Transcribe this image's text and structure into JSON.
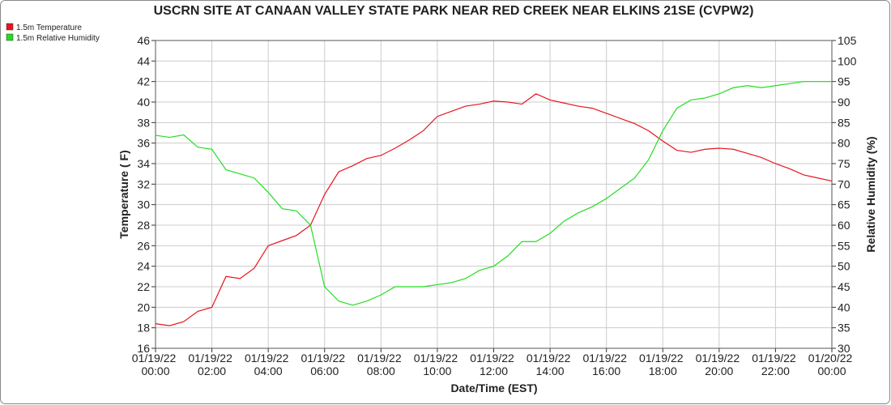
{
  "chart_data": {
    "type": "line",
    "title": "USCRN SITE AT CANAAN VALLEY STATE PARK NEAR RED CREEK NEAR ELKINS 21SE (CVPW2)",
    "x_label": "Date/Time (EST)",
    "y_label": "Temperature ( F)",
    "y2_label": "Relative Humidity (%)",
    "x": [
      0,
      0.5,
      1,
      1.5,
      2,
      2.5,
      3,
      3.5,
      4,
      4.5,
      5,
      5.5,
      6,
      6.5,
      7,
      7.5,
      8,
      8.5,
      9,
      9.5,
      10,
      10.5,
      11,
      11.5,
      12,
      12.5,
      13,
      13.5,
      14,
      14.5,
      15,
      15.5,
      16,
      16.5,
      17,
      17.5,
      18,
      18.5,
      19,
      19.5,
      20,
      20.5,
      21,
      21.5,
      22,
      22.5,
      23,
      23.5,
      24
    ],
    "series": [
      {
        "name": "1.5m Temperature",
        "color": "#e8141e",
        "axis": "y",
        "values": [
          18.4,
          18.2,
          18.6,
          19.6,
          20.0,
          23.0,
          22.8,
          23.8,
          26.0,
          26.5,
          27.0,
          28.0,
          31.0,
          33.2,
          33.8,
          34.5,
          34.8,
          35.5,
          36.3,
          37.2,
          38.6,
          39.1,
          39.6,
          39.8,
          40.1,
          40.0,
          39.8,
          40.8,
          40.2,
          39.9,
          39.6,
          39.4,
          38.9,
          38.4,
          37.9,
          37.2,
          36.2,
          35.3,
          35.1,
          35.4,
          35.5,
          35.4,
          35.0,
          34.6,
          34.0,
          33.5,
          32.9,
          32.6,
          32.3
        ]
      },
      {
        "name": "1.5m Relative Humidity",
        "color": "#22dd22",
        "axis": "y2",
        "values": [
          81.9,
          81.4,
          82,
          79,
          78.5,
          73.5,
          72.5,
          71.5,
          68,
          64,
          63.5,
          60,
          45,
          41.5,
          40.5,
          41.5,
          43,
          45,
          45,
          45,
          45.5,
          46,
          47,
          49,
          50,
          52.5,
          56,
          56,
          58,
          61,
          63,
          64.5,
          66.5,
          69,
          71.5,
          76,
          83,
          88.5,
          90.5,
          91,
          92,
          93.5,
          94,
          93.5,
          94,
          94.5,
          95,
          95,
          95
        ]
      }
    ],
    "xlim": [
      0,
      24
    ],
    "xticks": [
      {
        "value": 0,
        "label": "01/19/22 00:00"
      },
      {
        "value": 2,
        "label": "01/19/22 02:00"
      },
      {
        "value": 4,
        "label": "01/19/22 04:00"
      },
      {
        "value": 6,
        "label": "01/19/22 06:00"
      },
      {
        "value": 8,
        "label": "01/19/22 08:00"
      },
      {
        "value": 10,
        "label": "01/19/22 10:00"
      },
      {
        "value": 12,
        "label": "01/19/22 12:00"
      },
      {
        "value": 14,
        "label": "01/19/22 14:00"
      },
      {
        "value": 16,
        "label": "01/19/22 16:00"
      },
      {
        "value": 18,
        "label": "01/19/22 18:00"
      },
      {
        "value": 20,
        "label": "01/19/22 20:00"
      },
      {
        "value": 22,
        "label": "01/19/22 22:00"
      },
      {
        "value": 24,
        "label": "01/20/22 00:00"
      }
    ],
    "ylim": [
      16,
      46
    ],
    "yticks": [
      16,
      18,
      20,
      22,
      24,
      26,
      28,
      30,
      32,
      34,
      36,
      38,
      40,
      42,
      44,
      46
    ],
    "y2lim": [
      30,
      105
    ],
    "y2ticks": [
      30,
      35,
      40,
      45,
      50,
      55,
      60,
      65,
      70,
      75,
      80,
      85,
      90,
      95,
      100,
      105
    ],
    "grid": true,
    "legend": "top-left"
  }
}
